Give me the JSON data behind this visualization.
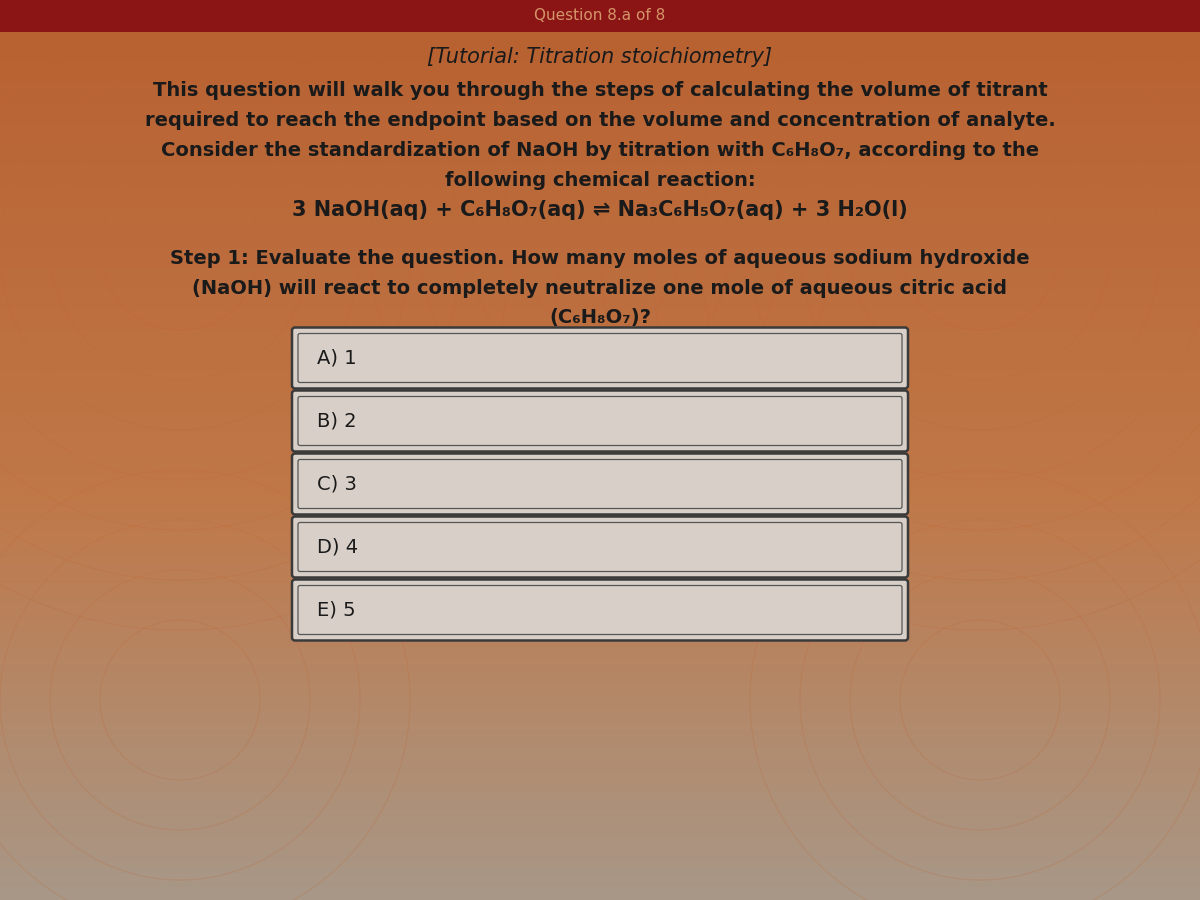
{
  "header_text": "Question 8.a of 8",
  "header_bg": "#8B1515",
  "header_text_color": "#D4956A",
  "title_line": "[Tutorial: Titration stoichiometry]",
  "body_lines": [
    "This question will walk you through the steps of calculating the volume of titrant",
    "required to reach the endpoint based on the volume and concentration of analyte.",
    "Consider the standardization of NaOH by titration with C₆H₈O₇, according to the",
    "following chemical reaction:",
    "3 NaOH(aq) + C₆H₈O₇(aq) ⇌ Na₃C₆H₅O₇(aq) + 3 H₂O(l)"
  ],
  "step_lines": [
    "Step 1: Evaluate the question. How many moles of aqueous sodium hydroxide",
    "(NaOH) will react to completely neutralize one mole of aqueous citric acid",
    "(C₆H₈O₇)?"
  ],
  "choices": [
    "A) 1",
    "B) 2",
    "C) 3",
    "D) 4",
    "E) 5"
  ],
  "text_color": "#1a1a1a",
  "choice_box_bg": "#D8D0C8",
  "choice_box_edge": "#555555",
  "bg_top_color": "#B86030",
  "bg_mid_color": "#C07848",
  "bg_bottom_color": "#A89888",
  "watermark_color": "#C06838"
}
